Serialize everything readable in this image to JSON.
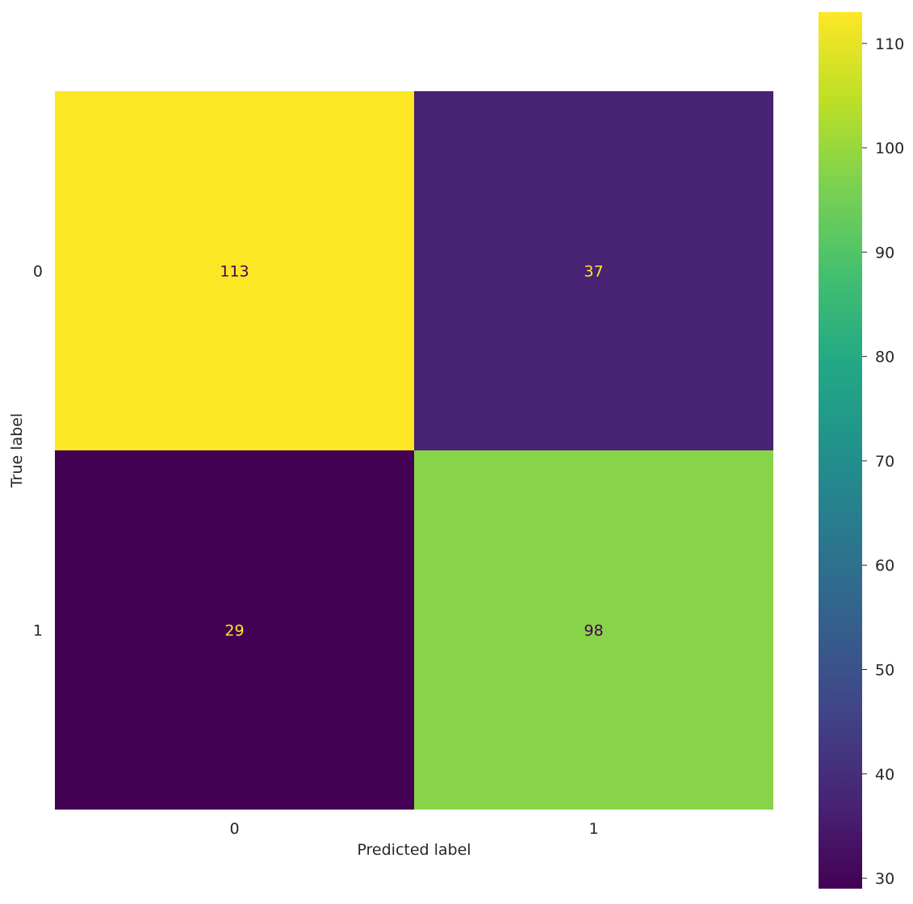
{
  "chart_data": {
    "type": "heatmap",
    "x_categories": [
      "0",
      "1"
    ],
    "y_categories": [
      "0",
      "1"
    ],
    "values": [
      [
        113,
        37
      ],
      [
        29,
        98
      ]
    ],
    "xlabel": "Predicted label",
    "ylabel": "True label",
    "colormap": "viridis",
    "color_range": [
      29,
      113
    ],
    "colorbar_ticks": [
      30,
      40,
      50,
      60,
      70,
      80,
      90,
      100,
      110
    ],
    "cell_label_color_light": "#fde725",
    "cell_label_color_dark": "#440154",
    "grid": false,
    "colorbar_position": "right"
  }
}
